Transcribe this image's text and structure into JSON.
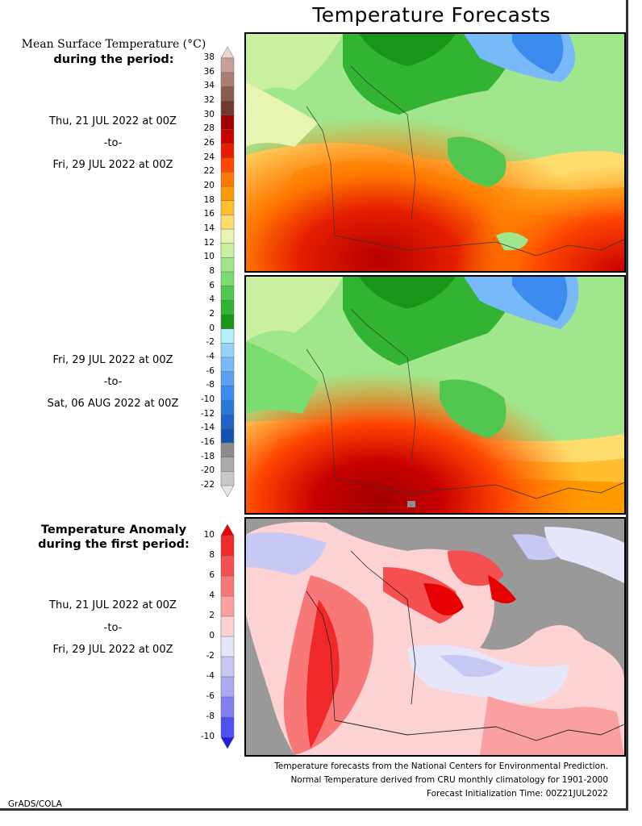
{
  "title": "Temperature Forecasts",
  "panel1": {
    "heading_line1": "Mean Surface Temperature (°C)",
    "heading_line2": "during the period:",
    "start": "Thu, 21 JUL 2022 at 00Z",
    "sep": "-to-",
    "end": "Fri, 29 JUL 2022 at 00Z"
  },
  "panel2": {
    "start": "Fri, 29 JUL 2022 at 00Z",
    "sep": "-to-",
    "end": "Sat, 06 AUG 2022 at 00Z"
  },
  "panel3": {
    "heading_line1": "Temperature Anomaly",
    "heading_line2": "during the first period:",
    "start": "Thu, 21 JUL 2022 at 00Z",
    "sep": "-to-",
    "end": "Fri, 29 JUL 2022 at 00Z"
  },
  "temp_scale": {
    "labels": [
      "38",
      "36",
      "34",
      "32",
      "30",
      "28",
      "26",
      "24",
      "22",
      "20",
      "18",
      "16",
      "14",
      "12",
      "10",
      "8",
      "6",
      "4",
      "2",
      "0",
      "-2",
      "-4",
      "-6",
      "-8",
      "-10",
      "-12",
      "-14",
      "-16",
      "-18",
      "-20",
      "-22"
    ],
    "colors": [
      "#ecd3cd",
      "#c8a097",
      "#aa7c72",
      "#8c5a50",
      "#6e3a32",
      "#a00000",
      "#c80000",
      "#e61e00",
      "#ff4600",
      "#ff7800",
      "#ff9b00",
      "#ffbe2e",
      "#ffdc6e",
      "#e6f5b4",
      "#c8f0a0",
      "#a0e68c",
      "#78dc6e",
      "#50c850",
      "#32b432",
      "#199619",
      "#b4f0fa",
      "#96d2fa",
      "#78b9fa",
      "#5aa0f0",
      "#3c8cf0",
      "#2878dc",
      "#1e64c8",
      "#1450b4",
      "#8c8c8c",
      "#aaaaaa",
      "#c8c8c8",
      "#e6e6e6"
    ]
  },
  "anom_scale": {
    "labels": [
      "10",
      "8",
      "6",
      "4",
      "2",
      "0",
      "-2",
      "-4",
      "-6",
      "-8",
      "-10"
    ],
    "colors": [
      "#e60000",
      "#f02828",
      "#f55050",
      "#f87878",
      "#fba0a0",
      "#fdd2d2",
      "#e6e6fa",
      "#c8c8f5",
      "#aaaaf0",
      "#8080f0",
      "#5050f0",
      "#1e1ee6"
    ]
  },
  "footer": {
    "line1": "Temperature forecasts from the National Centers for Environmental Prediction.",
    "line2": "Normal Temperature derived from CRU monthly climatology for 1901-2000",
    "line3": "Forecast Initialization Time: 00Z21JUL2022"
  },
  "credit": "GrADS/COLA"
}
